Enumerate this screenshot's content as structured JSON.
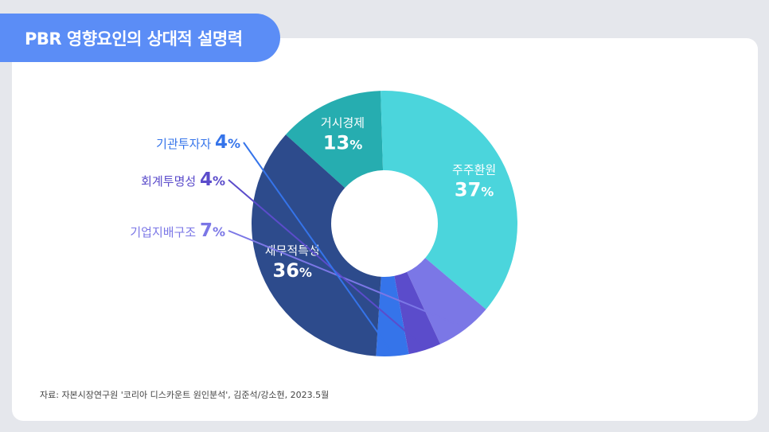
{
  "header": {
    "title": "PBR 영향요인의 상대적 설명력"
  },
  "source": "자료: 자본시장연구원 '코리아 디스카운트 원인분석', 김준석/강소현, 2023.5월",
  "colors": {
    "background": "#e5e7ec",
    "card": "#ffffff",
    "title_tab": "#5b8df6"
  },
  "chart_data": {
    "type": "pie",
    "donut": true,
    "title": "PBR 영향요인의 상대적 설명력",
    "unit": "%",
    "slices": [
      {
        "label": "거시경제",
        "value": 13,
        "color": "#26adb0",
        "label_position": "inside"
      },
      {
        "label": "주주환원",
        "value": 37,
        "color": "#4bd5dc",
        "label_position": "inside"
      },
      {
        "label": "기업지배구조",
        "value": 7,
        "color": "#7b77e6",
        "label_position": "outside"
      },
      {
        "label": "회계투명성",
        "value": 4,
        "color": "#5b4ccb",
        "label_position": "outside"
      },
      {
        "label": "기관투자자",
        "value": 4,
        "color": "#3574ea",
        "label_position": "outside"
      },
      {
        "label": "재무적특성",
        "value": 36,
        "color": "#2d4b8c",
        "label_position": "inside"
      }
    ]
  }
}
